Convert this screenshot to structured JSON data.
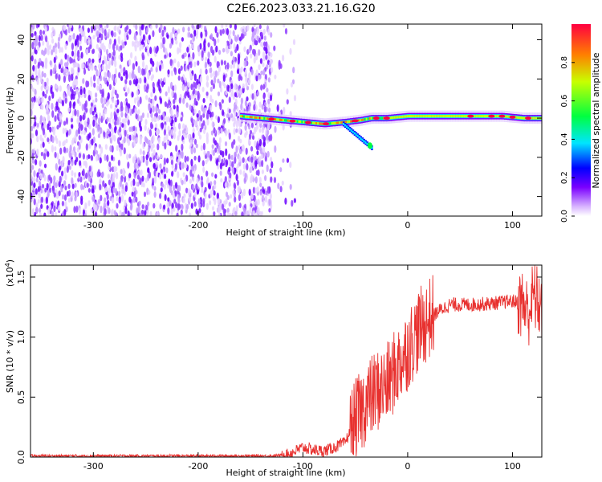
{
  "title": "C2E6.2023.033.21.16.G20",
  "chart_data": [
    {
      "type": "heatmap",
      "xlabel": "Height of straight line (km)",
      "ylabel": "Frequency (Hz)",
      "xlim": [
        -360,
        128
      ],
      "ylim": [
        -50,
        48
      ],
      "x_ticks": [
        -300,
        -200,
        -100,
        0,
        100
      ],
      "y_ticks": [
        -40,
        -20,
        0,
        20,
        40
      ],
      "colorbar": {
        "label": "Normalized spectral amplitude",
        "range": [
          0.0,
          1.0
        ],
        "ticks": [
          "0.0",
          "0.2",
          "0.4",
          "0.6",
          "0.8"
        ],
        "colormap": [
          "#ffffff",
          "#d8b4ff",
          "#7a00ff",
          "#0000ff",
          "#00e5ff",
          "#00ff40",
          "#c8ff00",
          "#ff8000",
          "#ff0040"
        ]
      },
      "regions": [
        {
          "description": "diffuse purple noise",
          "x_range": [
            -360,
            -130
          ],
          "freq_range": [
            -50,
            48
          ],
          "amplitude": 0.15
        },
        {
          "description": "signal band",
          "x_range": [
            -160,
            128
          ],
          "freq_center": [
            0,
            -2,
            -6,
            -4,
            0,
            1,
            1,
            1
          ],
          "peak_amplitude": 0.95
        }
      ],
      "series": [
        {
          "name": "",
          "x": [
            -160,
            -140,
            -120,
            -100,
            -80,
            -60,
            -45,
            -35,
            -20,
            0,
            30,
            60,
            90,
            110,
            128
          ],
          "y": [
            1,
            0,
            -1,
            -2,
            -3,
            -2,
            -1,
            0,
            0,
            1,
            1,
            1,
            1,
            0,
            0
          ]
        }
      ]
    },
    {
      "type": "line",
      "xlabel": "Height of straight line (km)",
      "ylabel": "SNR (10 * v/v)",
      "y_scale_label": "(x10",
      "y_scale_exp": "4",
      "xlim": [
        -360,
        128
      ],
      "ylim": [
        0.0,
        1.6
      ],
      "x_ticks": [
        -300,
        -200,
        -100,
        0,
        100
      ],
      "y_ticks": [
        "0.0",
        "0.5",
        "1.0",
        "1.5"
      ],
      "color": "#e8312f",
      "series": [
        {
          "name": "",
          "x": [
            -360,
            -300,
            -200,
            -130,
            -115,
            -100,
            -90,
            -80,
            -70,
            -60,
            -50,
            -40,
            -30,
            -20,
            -10,
            0,
            10,
            20,
            30,
            40,
            60,
            80,
            100,
            110,
            115,
            120,
            128
          ],
          "y": [
            0.01,
            0.01,
            0.01,
            0.01,
            0.02,
            0.08,
            0.06,
            0.05,
            0.08,
            0.12,
            0.3,
            0.45,
            0.55,
            0.6,
            0.75,
            0.9,
            1.05,
            1.15,
            1.22,
            1.27,
            1.27,
            1.28,
            1.3,
            1.28,
            1.2,
            1.35,
            1.25
          ]
        }
      ]
    }
  ]
}
